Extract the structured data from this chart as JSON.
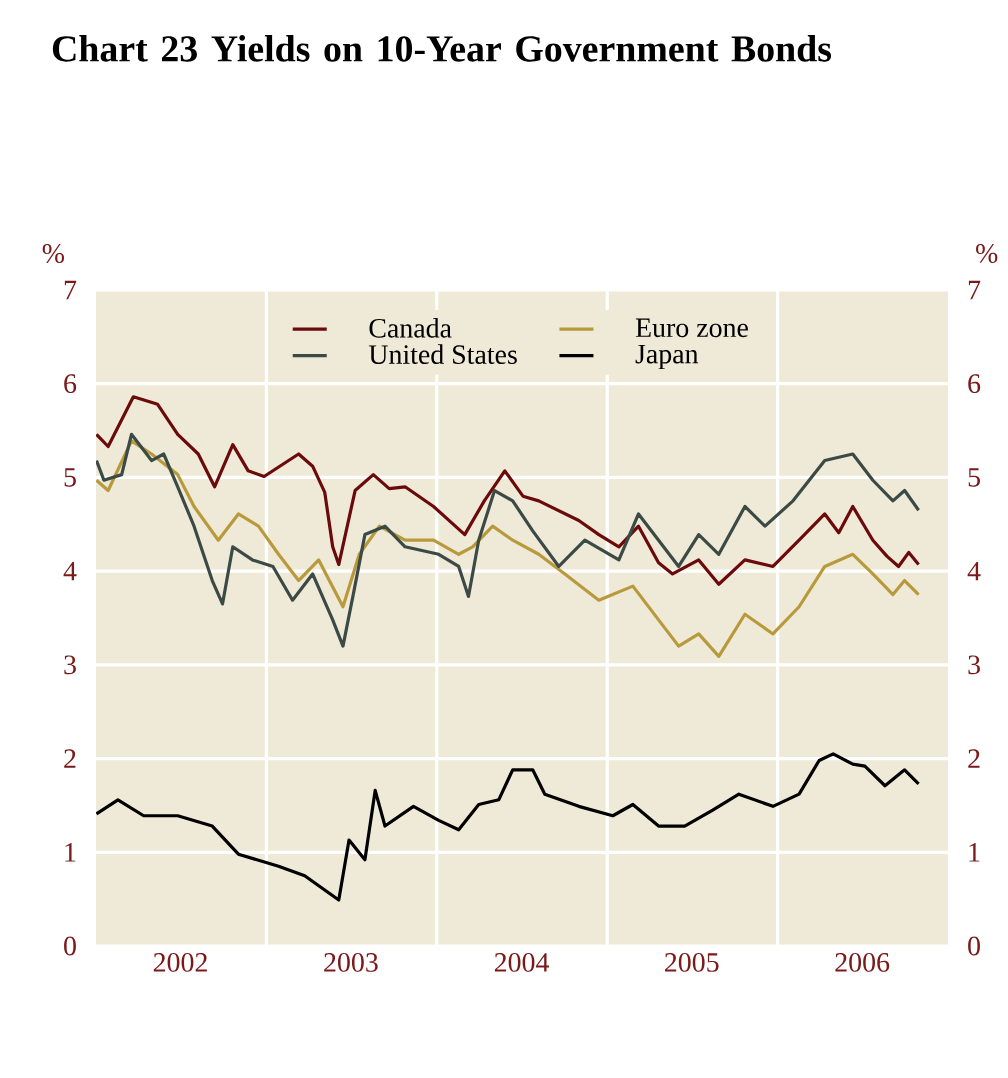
{
  "chart_data": {
    "type": "line",
    "title": "Chart 23   Yields on 10-Year Government Bonds",
    "ylabel": "%",
    "y2label": "%",
    "xlim": [
      "2002-01-01",
      "2007-01-01"
    ],
    "xticks": [
      {
        "value": "2003-01-01",
        "label": null
      },
      {
        "value": "2004-01-01",
        "label": null
      },
      {
        "value": "2005-01-01",
        "label": null
      },
      {
        "value": "2006-01-01",
        "label": null
      },
      {
        "value": "2002-07-01",
        "label": "2002"
      },
      {
        "value": "2003-07-01",
        "label": "2003"
      },
      {
        "value": "2004-07-01",
        "label": "2004"
      },
      {
        "value": "2005-07-01",
        "label": "2005"
      },
      {
        "value": "2006-07-01",
        "label": "2006"
      }
    ],
    "ylim": [
      0,
      7
    ],
    "yticks": [
      0,
      1,
      2,
      3,
      4,
      5,
      6,
      7
    ],
    "y2lim": [
      0,
      7
    ],
    "y2ticks": [
      0,
      1,
      2,
      3,
      4,
      5,
      6,
      7
    ],
    "grid": true,
    "legend": "top",
    "series": [
      {
        "name": "Canada",
        "color": "#6b0a0a",
        "x": [
          "2002-01-02",
          "2002-01-27",
          "2002-03-22",
          "2002-05-13",
          "2002-06-25",
          "2002-08-08",
          "2002-09-12",
          "2002-10-21",
          "2002-11-23",
          "2002-12-27",
          "2003-03-11",
          "2003-04-10",
          "2003-05-06",
          "2003-05-23",
          "2003-06-05",
          "2003-07-10",
          "2003-08-18",
          "2003-09-21",
          "2003-10-25",
          "2003-12-25",
          "2004-03-01",
          "2004-04-12",
          "2004-05-26",
          "2004-07-04",
          "2004-08-07",
          "2004-11-01",
          "2004-12-14",
          "2005-01-26",
          "2005-03-09",
          "2005-04-21",
          "2005-05-21",
          "2005-07-16",
          "2005-08-28",
          "2005-10-23",
          "2005-12-22",
          "2006-02-16",
          "2006-04-12",
          "2006-05-12",
          "2006-06-11",
          "2006-07-24",
          "2006-08-23",
          "2006-09-17",
          "2006-10-09",
          "2006-10-30"
        ],
        "values": [
          5.46,
          5.33,
          5.86,
          5.78,
          5.46,
          5.25,
          4.9,
          5.35,
          5.07,
          5.01,
          5.25,
          5.12,
          4.84,
          4.26,
          4.07,
          4.86,
          5.03,
          4.88,
          4.9,
          4.69,
          4.39,
          4.75,
          5.07,
          4.8,
          4.75,
          4.54,
          4.39,
          4.26,
          4.48,
          4.09,
          3.97,
          4.12,
          3.86,
          4.12,
          4.05,
          4.33,
          4.61,
          4.41,
          4.69,
          4.33,
          4.16,
          4.05,
          4.2,
          4.07
        ]
      },
      {
        "name": "Euro zone",
        "color": "#b89a3c",
        "x": [
          "2002-01-02",
          "2002-01-27",
          "2002-03-18",
          "2002-04-30",
          "2002-06-25",
          "2002-07-30",
          "2002-09-20",
          "2002-11-02",
          "2002-12-15",
          "2003-01-27",
          "2003-03-11",
          "2003-04-23",
          "2003-06-14",
          "2003-07-19",
          "2003-08-31",
          "2003-10-25",
          "2003-12-25",
          "2004-02-17",
          "2004-03-18",
          "2004-04-30",
          "2004-06-12",
          "2004-08-07",
          "2004-10-02",
          "2004-12-14",
          "2005-02-25",
          "2005-04-21",
          "2005-06-03",
          "2005-07-16",
          "2005-08-28",
          "2005-10-23",
          "2005-12-22",
          "2006-02-16",
          "2006-04-12",
          "2006-06-11",
          "2006-07-24",
          "2006-09-05",
          "2006-09-30",
          "2006-10-30"
        ],
        "values": [
          4.97,
          4.86,
          5.39,
          5.25,
          5.03,
          4.69,
          4.33,
          4.61,
          4.48,
          4.18,
          3.9,
          4.12,
          3.62,
          4.18,
          4.48,
          4.33,
          4.33,
          4.18,
          4.26,
          4.48,
          4.33,
          4.18,
          3.97,
          3.69,
          3.84,
          3.48,
          3.2,
          3.33,
          3.09,
          3.54,
          3.33,
          3.62,
          4.05,
          4.18,
          3.97,
          3.75,
          3.9,
          3.75
        ]
      },
      {
        "name": "United States",
        "color": "#3c4a45",
        "x": [
          "2002-01-02",
          "2002-01-18",
          "2002-02-25",
          "2002-03-18",
          "2002-04-30",
          "2002-05-26",
          "2002-06-25",
          "2002-07-30",
          "2002-09-07",
          "2002-09-29",
          "2002-10-21",
          "2002-12-02",
          "2003-01-15",
          "2003-02-26",
          "2003-04-10",
          "2003-05-23",
          "2003-06-14",
          "2003-07-06",
          "2003-07-31",
          "2003-09-12",
          "2003-10-25",
          "2004-01-05",
          "2004-02-17",
          "2004-03-09",
          "2004-03-31",
          "2004-05-04",
          "2004-06-12",
          "2004-07-25",
          "2004-09-19",
          "2004-11-14",
          "2005-01-26",
          "2005-03-09",
          "2005-04-21",
          "2005-06-03",
          "2005-07-16",
          "2005-08-28",
          "2005-10-23",
          "2005-12-05",
          "2006-02-03",
          "2006-04-12",
          "2006-06-11",
          "2006-07-24",
          "2006-09-05",
          "2006-09-30",
          "2006-10-30"
        ],
        "values": [
          5.18,
          4.97,
          5.03,
          5.46,
          5.18,
          5.25,
          4.9,
          4.48,
          3.9,
          3.65,
          4.26,
          4.12,
          4.05,
          3.69,
          3.97,
          3.48,
          3.2,
          3.75,
          4.39,
          4.48,
          4.26,
          4.18,
          4.05,
          3.73,
          4.33,
          4.86,
          4.75,
          4.43,
          4.05,
          4.33,
          4.12,
          4.61,
          4.33,
          4.05,
          4.39,
          4.18,
          4.69,
          4.48,
          4.75,
          5.18,
          5.25,
          4.97,
          4.75,
          4.86,
          4.65
        ]
      },
      {
        "name": "Japan",
        "color": "#000000",
        "x": [
          "2002-01-02",
          "2002-02-17",
          "2002-04-13",
          "2002-06-25",
          "2002-09-07",
          "2002-11-02",
          "2003-01-27",
          "2003-03-24",
          "2003-06-05",
          "2003-06-27",
          "2003-07-31",
          "2003-08-22",
          "2003-09-12",
          "2003-11-12",
          "2004-01-05",
          "2004-02-17",
          "2004-03-31",
          "2004-05-13",
          "2004-06-12",
          "2004-07-25",
          "2004-08-20",
          "2004-11-01",
          "2005-01-13",
          "2005-02-25",
          "2005-04-21",
          "2005-06-16",
          "2005-08-15",
          "2005-10-10",
          "2005-12-22",
          "2006-02-16",
          "2006-03-31",
          "2006-04-30",
          "2006-06-11",
          "2006-07-07",
          "2006-08-19",
          "2006-09-30",
          "2006-10-30"
        ],
        "values": [
          1.41,
          1.56,
          1.39,
          1.39,
          1.28,
          0.98,
          0.85,
          0.75,
          0.49,
          1.13,
          0.92,
          1.66,
          1.28,
          1.49,
          1.34,
          1.24,
          1.51,
          1.56,
          1.88,
          1.88,
          1.62,
          1.49,
          1.39,
          1.51,
          1.28,
          1.28,
          1.45,
          1.62,
          1.49,
          1.62,
          1.98,
          2.05,
          1.94,
          1.92,
          1.71,
          1.88,
          1.73
        ]
      }
    ]
  }
}
